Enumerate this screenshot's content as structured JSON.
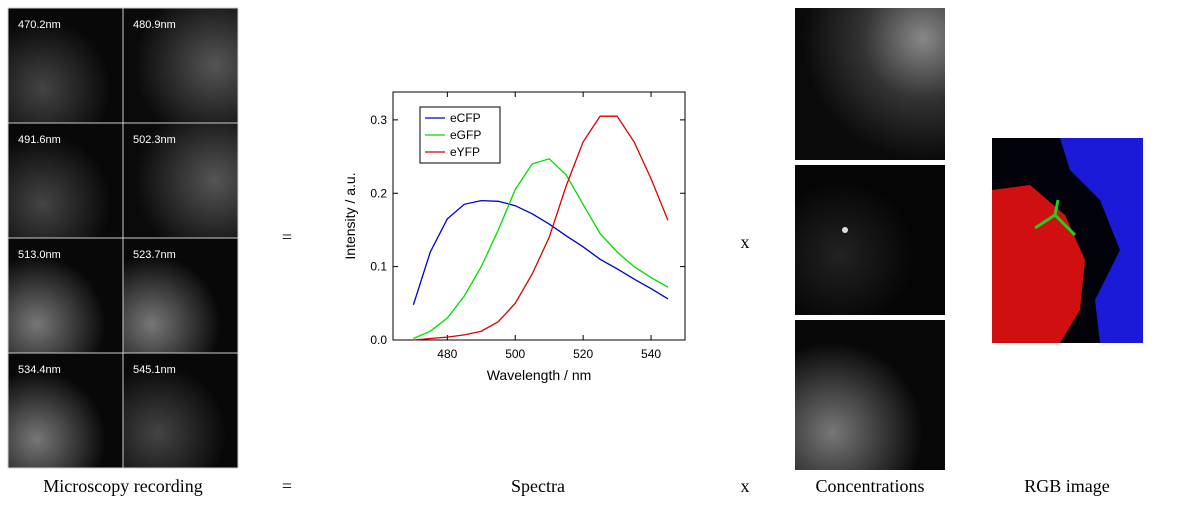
{
  "recording": {
    "labels": [
      "470.2nm",
      "480.9nm",
      "491.6nm",
      "502.3nm",
      "513.0nm",
      "523.7nm",
      "534.4nm",
      "545.1nm"
    ]
  },
  "operators": {
    "equals": "=",
    "times": "x"
  },
  "captions": {
    "recording": "Microscopy recording",
    "equals": "=",
    "spectra": "Spectra",
    "times": "x",
    "concentrations": "Concentrations",
    "rgb": "RGB image"
  },
  "chart_data": {
    "type": "line",
    "x_label": "Wavelength / nm",
    "y_label": "Intensity / a.u.",
    "x": [
      470,
      475,
      480,
      485,
      490,
      495,
      500,
      505,
      510,
      515,
      520,
      525,
      530,
      535,
      540,
      545
    ],
    "series": [
      {
        "name": "eCFP",
        "color": "#0000cc",
        "values": [
          0.048,
          0.12,
          0.165,
          0.185,
          0.19,
          0.189,
          0.183,
          0.172,
          0.158,
          0.142,
          0.127,
          0.11,
          0.097,
          0.083,
          0.07,
          0.056
        ]
      },
      {
        "name": "eGFP",
        "color": "#00dd00",
        "values": [
          0.002,
          0.012,
          0.03,
          0.06,
          0.1,
          0.15,
          0.205,
          0.24,
          0.247,
          0.225,
          0.185,
          0.145,
          0.12,
          0.1,
          0.085,
          0.072
        ]
      },
      {
        "name": "eYFP",
        "color": "#dd0000",
        "values": [
          0.0,
          0.002,
          0.004,
          0.007,
          0.012,
          0.025,
          0.05,
          0.09,
          0.14,
          0.21,
          0.27,
          0.305,
          0.305,
          0.27,
          0.22,
          0.163
        ]
      }
    ],
    "xlim": [
      464,
      550
    ],
    "ylim": [
      0,
      0.338
    ],
    "xticks": [
      480,
      500,
      520,
      540
    ],
    "yticks": [
      {
        "value": 0,
        "label": "0.0"
      },
      0.1,
      0.2,
      0.3
    ],
    "legend": "upper left"
  }
}
